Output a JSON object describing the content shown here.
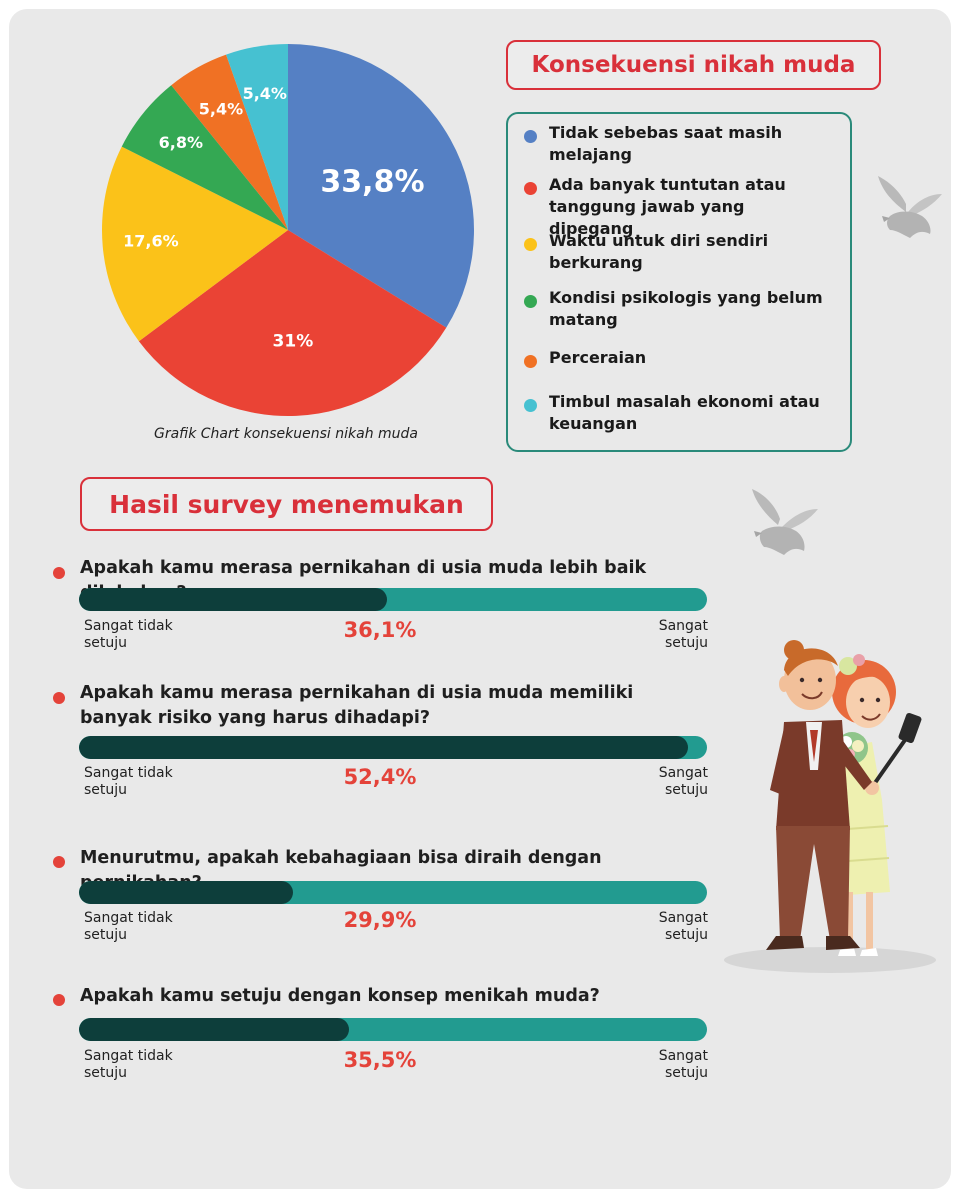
{
  "chart_data": {
    "type": "pie",
    "title": "Konsekuensi nikah muda",
    "caption": "Grafik Chart konsekuensi nikah muda",
    "slices": [
      {
        "name": "Tidak sebebas saat masih melajang",
        "value": 33.8,
        "label": "33,8%",
        "color": "#5580c4"
      },
      {
        "name": "Ada banyak tuntutan atau tanggung jawab yang dipegang",
        "value": 31,
        "label": "31%",
        "color": "#ea4335"
      },
      {
        "name": "Waktu untuk diri sendiri berkurang",
        "value": 17.6,
        "label": "17,6%",
        "color": "#fbc219"
      },
      {
        "name": "Kondisi psikologis yang belum matang",
        "value": 6.8,
        "label": "6,8%",
        "color": "#34a853"
      },
      {
        "name": "Perceraian",
        "value": 5.4,
        "label": "5,4%",
        "color": "#f07124"
      },
      {
        "name": "Timbul masalah ekonomi atau keuangan",
        "value": 5.4,
        "label": "5,4%",
        "color": "#46c1d1"
      }
    ],
    "legend": {
      "placement": "right"
    }
  },
  "survey": {
    "title": "Hasil survey menemukan",
    "left_label": "Sangat tidak setuju",
    "right_label": "Sangat setuju",
    "questions": [
      {
        "text": "Apakah kamu merasa pernikahan di usia muda lebih baik dilakukan?",
        "percent": 36.1,
        "percent_label": "36,1%",
        "bar_fill_fraction": 0.49
      },
      {
        "text": "Apakah kamu merasa pernikahan di usia muda memiliki banyak risiko yang harus dihadapi?",
        "percent": 52.4,
        "percent_label": "52,4%",
        "bar_fill_fraction": 0.97
      },
      {
        "text": "Menurutmu, apakah kebahagiaan bisa diraih dengan pernikahan?",
        "percent": 29.9,
        "percent_label": "29,9%",
        "bar_fill_fraction": 0.34
      },
      {
        "text": "Apakah kamu setuju dengan konsep menikah muda?",
        "percent": 35.5,
        "percent_label": "35,5%",
        "bar_fill_fraction": 0.43
      }
    ]
  },
  "colors": {
    "accent": "#d9303a",
    "teal": "#229b90",
    "dark_teal": "#0d3e3b"
  },
  "icons": [
    "dove-icon",
    "dove-icon",
    "couple-selfie-illustration"
  ]
}
